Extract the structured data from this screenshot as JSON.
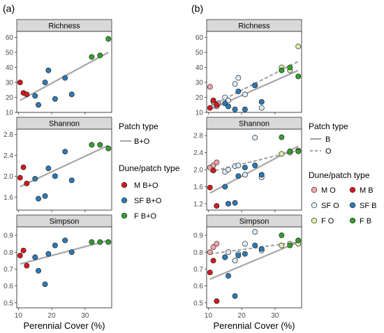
{
  "figure": {
    "panel_letters": [
      "(a)",
      "(b)"
    ],
    "x_axis_title": "Perennial Cover (%)",
    "x_ticks": [
      10,
      20,
      30
    ],
    "legend_a": {
      "patch_title": "Patch type",
      "patch_entries": [
        {
          "label": "B+O",
          "style": "solid"
        }
      ],
      "dune_title": "Dune/patch type",
      "dune_entries": [
        {
          "label": "M B+O",
          "color": "#d7191c"
        },
        {
          "label": "SF B+O",
          "color": "#2c7bb6"
        },
        {
          "label": "F B+O",
          "color": "#33a02c"
        }
      ]
    },
    "legend_b": {
      "patch_title": "Patch type",
      "patch_entries": [
        {
          "label": "B",
          "style": "solid"
        },
        {
          "label": "O",
          "style": "dashed"
        }
      ],
      "dune_title": "Dune/patch type",
      "dune_entries": [
        {
          "label": "M O",
          "color": "#f4a7a9"
        },
        {
          "label": "M B",
          "color": "#d7191c"
        },
        {
          "label": "SF O",
          "color": "#dceefa"
        },
        {
          "label": "SF B",
          "color": "#2c7bb6"
        },
        {
          "label": "F O",
          "color": "#d9f0a3"
        },
        {
          "label": "F B",
          "color": "#33a02c"
        }
      ]
    }
  },
  "chart_data": [
    {
      "type": "scatter",
      "panel": "(a)",
      "facet": "Richness",
      "xlim": [
        9.5,
        38
      ],
      "ylim": [
        10,
        64
      ],
      "yticks": [
        10,
        20,
        30,
        40,
        50,
        60
      ],
      "series": [
        {
          "name": "M B+O",
          "color": "#d7191c",
          "x": [
            10.5,
            11.5,
            12.5
          ],
          "y": [
            30,
            23,
            22
          ]
        },
        {
          "name": "SF B+O",
          "color": "#2c7bb6",
          "x": [
            15,
            16,
            18,
            19,
            21,
            24,
            26
          ],
          "y": [
            21,
            15,
            30,
            38,
            19,
            33,
            22
          ]
        },
        {
          "name": "F B+O",
          "color": "#33a02c",
          "x": [
            32,
            34.5,
            37
          ],
          "y": [
            47,
            48,
            59
          ]
        }
      ],
      "fits": [
        {
          "name": "B+O",
          "style": "solid",
          "x": [
            10.5,
            37
          ],
          "y": [
            18,
            50
          ]
        }
      ]
    },
    {
      "type": "scatter",
      "panel": "(a)",
      "facet": "Shannon",
      "xlim": [
        9.5,
        38
      ],
      "ylim": [
        1.35,
        2.9
      ],
      "yticks": [
        1.6,
        2.0,
        2.4,
        2.8
      ],
      "series": [
        {
          "name": "M B+O",
          "color": "#d7191c",
          "x": [
            10.5,
            11.5,
            12.5
          ],
          "y": [
            1.97,
            2.17,
            1.86
          ]
        },
        {
          "name": "SF B+O",
          "color": "#2c7bb6",
          "x": [
            15,
            16,
            18,
            19,
            21,
            24,
            26
          ],
          "y": [
            1.95,
            1.57,
            1.62,
            2.15,
            2.0,
            2.47,
            1.92
          ]
        },
        {
          "name": "F B+O",
          "color": "#33a02c",
          "x": [
            32,
            34.5,
            37
          ],
          "y": [
            2.6,
            2.6,
            2.53
          ]
        }
      ],
      "fits": [
        {
          "name": "B+O",
          "style": "solid",
          "x": [
            10.5,
            37
          ],
          "y": [
            1.8,
            2.59
          ]
        }
      ]
    },
    {
      "type": "scatter",
      "panel": "(a)",
      "facet": "Simpson",
      "xlim": [
        9.5,
        38
      ],
      "ylim": [
        0.47,
        0.95
      ],
      "yticks": [
        0.5,
        0.6,
        0.7,
        0.8,
        0.9
      ],
      "series": [
        {
          "name": "M B+O",
          "color": "#d7191c",
          "x": [
            10.5,
            11.5,
            12.5
          ],
          "y": [
            0.78,
            0.81,
            0.72
          ]
        },
        {
          "name": "SF B+O",
          "color": "#2c7bb6",
          "x": [
            15,
            16,
            18,
            19,
            21,
            24,
            26
          ],
          "y": [
            0.77,
            0.69,
            0.61,
            0.79,
            0.84,
            0.87,
            0.8
          ]
        },
        {
          "name": "F B+O",
          "color": "#33a02c",
          "x": [
            32,
            34.5,
            37
          ],
          "y": [
            0.86,
            0.86,
            0.86
          ]
        }
      ],
      "fits": [
        {
          "name": "B+O",
          "style": "solid",
          "x": [
            10.5,
            37
          ],
          "y": [
            0.73,
            0.87
          ]
        }
      ]
    },
    {
      "type": "scatter",
      "panel": "(b)",
      "facet": "Richness",
      "xlim": [
        9.5,
        38
      ],
      "ylim": [
        10,
        64
      ],
      "yticks": [
        10,
        20,
        30,
        40,
        50,
        60
      ],
      "series": [
        {
          "name": "M O",
          "color": "#f4a7a9",
          "x": [
            10.5,
            11.5,
            12.5,
            13
          ],
          "y": [
            27,
            17,
            14,
            16
          ]
        },
        {
          "name": "M B",
          "color": "#d7191c",
          "x": [
            10.5,
            11.5,
            12.5
          ],
          "y": [
            13,
            18,
            15
          ]
        },
        {
          "name": "SF O",
          "color": "#dceefa",
          "x": [
            15,
            16,
            18,
            19,
            21,
            24,
            26
          ],
          "y": [
            20,
            18,
            29,
            33,
            22,
            28,
            13
          ]
        },
        {
          "name": "SF B",
          "color": "#2c7bb6",
          "x": [
            15,
            16,
            18,
            19,
            21,
            24,
            26
          ],
          "y": [
            16,
            14,
            12,
            24,
            12,
            28,
            17
          ]
        },
        {
          "name": "F O",
          "color": "#d9f0a3",
          "x": [
            32,
            34.5,
            37
          ],
          "y": [
            40,
            38,
            54
          ]
        },
        {
          "name": "F B",
          "color": "#33a02c",
          "x": [
            32,
            34.5,
            37
          ],
          "y": [
            38,
            40,
            34
          ]
        }
      ],
      "fits": [
        {
          "name": "B",
          "style": "solid",
          "x": [
            10.5,
            37
          ],
          "y": [
            12,
            38
          ]
        },
        {
          "name": "O",
          "style": "dashed",
          "x": [
            10.5,
            37
          ],
          "y": [
            14,
            44
          ]
        }
      ]
    },
    {
      "type": "scatter",
      "panel": "(b)",
      "facet": "Shannon",
      "xlim": [
        9.5,
        38
      ],
      "ylim": [
        1.05,
        2.95
      ],
      "yticks": [
        1.2,
        1.6,
        2.0,
        2.4,
        2.8
      ],
      "series": [
        {
          "name": "M O",
          "color": "#f4a7a9",
          "x": [
            10.5,
            11.5,
            12.5
          ],
          "y": [
            2.05,
            2.1,
            2.17
          ]
        },
        {
          "name": "M B",
          "color": "#d7191c",
          "x": [
            10.5,
            11.5,
            12.5
          ],
          "y": [
            1.58,
            1.98,
            1.15
          ]
        },
        {
          "name": "SF O",
          "color": "#dceefa",
          "x": [
            15,
            16,
            18,
            19,
            21,
            24,
            26
          ],
          "y": [
            1.95,
            2.0,
            2.08,
            2.1,
            1.88,
            2.75,
            1.82
          ]
        },
        {
          "name": "SF B",
          "color": "#2c7bb6",
          "x": [
            15,
            16,
            18,
            19,
            21,
            24,
            26
          ],
          "y": [
            1.6,
            1.2,
            1.22,
            1.85,
            2.05,
            2.1,
            1.88
          ]
        },
        {
          "name": "F O",
          "color": "#d9f0a3",
          "x": [
            32,
            34.5,
            37
          ],
          "y": [
            2.37,
            2.4,
            2.45
          ]
        },
        {
          "name": "F B",
          "color": "#33a02c",
          "x": [
            32,
            34.5,
            37
          ],
          "y": [
            2.76,
            2.43,
            2.43
          ]
        }
      ],
      "fits": [
        {
          "name": "B",
          "style": "solid",
          "x": [
            10.5,
            37
          ],
          "y": [
            1.45,
            2.55
          ]
        },
        {
          "name": "O",
          "style": "dashed",
          "x": [
            10.5,
            37
          ],
          "y": [
            1.95,
            2.45
          ]
        }
      ]
    },
    {
      "type": "scatter",
      "panel": "(b)",
      "facet": "Simpson",
      "xlim": [
        9.5,
        38
      ],
      "ylim": [
        0.47,
        0.95
      ],
      "yticks": [
        0.5,
        0.6,
        0.7,
        0.8,
        0.9
      ],
      "series": [
        {
          "name": "M O",
          "color": "#f4a7a9",
          "x": [
            10.5,
            11.5,
            12.5
          ],
          "y": [
            0.8,
            0.83,
            0.85
          ]
        },
        {
          "name": "M B",
          "color": "#d7191c",
          "x": [
            10.5,
            11.5,
            12.5
          ],
          "y": [
            0.68,
            0.75,
            0.51
          ]
        },
        {
          "name": "SF O",
          "color": "#dceefa",
          "x": [
            15,
            16,
            18,
            19,
            21,
            24,
            26
          ],
          "y": [
            0.77,
            0.8,
            0.75,
            0.79,
            0.85,
            0.92,
            0.81
          ]
        },
        {
          "name": "SF B",
          "color": "#2c7bb6",
          "x": [
            15,
            16,
            18,
            19,
            21,
            24,
            26
          ],
          "y": [
            0.77,
            0.66,
            0.54,
            0.78,
            0.79,
            0.84,
            0.82
          ]
        },
        {
          "name": "F O",
          "color": "#d9f0a3",
          "x": [
            32,
            34.5,
            37
          ],
          "y": [
            0.84,
            0.85,
            0.85
          ]
        },
        {
          "name": "F B",
          "color": "#33a02c",
          "x": [
            32,
            34.5,
            37
          ],
          "y": [
            0.9,
            0.84,
            0.87
          ]
        }
      ],
      "fits": [
        {
          "name": "B",
          "style": "solid",
          "x": [
            10.5,
            37
          ],
          "y": [
            0.64,
            0.86
          ]
        },
        {
          "name": "O",
          "style": "dashed",
          "x": [
            10.5,
            37
          ],
          "y": [
            0.79,
            0.86
          ]
        }
      ]
    }
  ]
}
